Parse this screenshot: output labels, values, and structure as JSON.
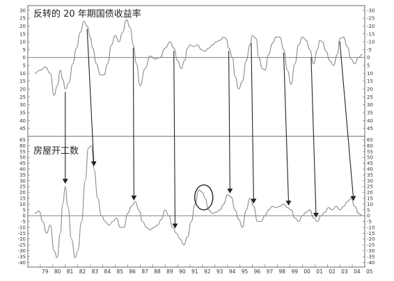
{
  "chart_data": [
    {
      "type": "line",
      "title": "反转的 20 年期国债收益率",
      "y_ticks": [
        -30,
        -25,
        -20,
        -15,
        -10,
        -5,
        0,
        5,
        10,
        15,
        20,
        25,
        30,
        35,
        40,
        45
      ],
      "y_tick_labels": [
        "30",
        "25",
        "20",
        "15",
        "10",
        "5",
        "0",
        "5",
        "10",
        "15",
        "20",
        "25",
        "30",
        "35",
        "40",
        "45"
      ],
      "y_tick_labels_right": [
        "-30",
        "-25",
        "-20",
        "-15",
        "-10",
        "-5",
        "0",
        "5",
        "10",
        "15",
        "20",
        "25",
        "30",
        "35",
        "40",
        "45"
      ],
      "ylim": [
        -33,
        50
      ],
      "inverted_axis": true,
      "reference_line": 0,
      "series": [
        {
          "x": [
            1978.55,
            1979.0,
            1979.4,
            1979.8,
            1980.1,
            1980.35,
            1980.6,
            1980.8,
            1981.0,
            1981.3,
            1981.6,
            1981.9,
            1982.2,
            1982.5,
            1982.75,
            1983.0,
            1983.2,
            1983.5,
            1983.8,
            1984.1,
            1984.4,
            1984.7,
            1985.0,
            1985.3,
            1985.6,
            1985.9,
            1986.2,
            1986.45,
            1986.7,
            1987.0,
            1987.4,
            1987.8,
            1988.2,
            1988.6,
            1989.0,
            1989.4,
            1989.7,
            1990.0,
            1990.3,
            1990.55,
            1990.8,
            1991.0,
            1991.3,
            1991.6,
            1991.9,
            1992.2,
            1992.5,
            1992.8,
            1993.1,
            1993.4,
            1993.7,
            1993.9,
            1994.1,
            1994.4,
            1994.6,
            1994.9,
            1995.2,
            1995.5,
            1995.8,
            1996.0,
            1996.3,
            1996.5,
            1996.8,
            1997.0,
            1997.3,
            1997.6,
            1997.9,
            1998.2,
            1998.5,
            1998.8,
            1999.1,
            1999.4,
            1999.7,
            2000.0,
            2000.3,
            2000.6,
            2000.9,
            2001.2,
            2001.4,
            2001.6,
            2001.9,
            2002.2,
            2002.5,
            2002.8,
            2003.0,
            2003.3,
            2003.6,
            2003.9,
            2004.2,
            2004.5,
            2004.8
          ],
          "values": [
            10,
            8,
            6,
            10,
            24,
            18,
            8,
            14,
            20,
            16,
            4,
            -6,
            -16,
            -23,
            -20,
            -13,
            -6,
            4,
            11,
            11,
            4,
            -8,
            -14,
            -10,
            -16,
            -24,
            -19,
            -8,
            4,
            18,
            7,
            -1,
            1,
            0,
            -6,
            -10,
            -6,
            2,
            7,
            2,
            -6,
            -8,
            -7,
            -8,
            -5,
            -4,
            -6,
            -8,
            -10,
            -11,
            -13,
            -12,
            -6,
            0,
            12,
            20,
            15,
            2,
            -8,
            -14,
            -12,
            0,
            7,
            8,
            -2,
            -9,
            -13,
            -13,
            -5,
            8,
            17,
            4,
            -8,
            -13,
            -11,
            -5,
            4,
            -5,
            -11,
            -10,
            -4,
            2,
            5,
            -2,
            -12,
            -13,
            -7,
            1,
            4,
            0,
            -2
          ]
        }
      ]
    },
    {
      "type": "line",
      "title": "房屋开工数",
      "y_ticks": [
        65,
        60,
        55,
        50,
        45,
        40,
        35,
        30,
        25,
        20,
        15,
        10,
        5,
        0,
        -5,
        -10,
        -15,
        -20,
        -25,
        -30,
        -35,
        -40
      ],
      "y_tick_labels": [
        "65",
        "60",
        "55",
        "50",
        "45",
        "40",
        "35",
        "30",
        "25",
        "20",
        "15",
        "10",
        "5",
        "0",
        "-5",
        "-10",
        "-15",
        "-20",
        "-25",
        "-30",
        "-35",
        "-40"
      ],
      "y_tick_labels_right": [
        "65",
        "60",
        "55",
        "50",
        "45",
        "40",
        "35",
        "30",
        "25",
        "20",
        "15",
        "10",
        "5",
        "0",
        "-5",
        "-10",
        "-15",
        "-20",
        "-25",
        "-30",
        "-35",
        "-40"
      ],
      "ylim": [
        -44,
        68
      ],
      "reference_line": 0,
      "series": [
        {
          "x": [
            1978.55,
            1978.9,
            1979.2,
            1979.5,
            1979.8,
            1980.1,
            1980.35,
            1980.6,
            1980.8,
            1981.0,
            1981.2,
            1981.5,
            1981.8,
            1982.0,
            1982.3,
            1982.6,
            1982.85,
            1983.1,
            1983.3,
            1983.6,
            1983.9,
            1984.2,
            1984.5,
            1984.8,
            1985.1,
            1985.4,
            1985.7,
            1986.0,
            1986.3,
            1986.6,
            1986.9,
            1987.2,
            1987.5,
            1987.8,
            1988.1,
            1988.4,
            1988.7,
            1989.0,
            1989.3,
            1989.6,
            1989.9,
            1990.2,
            1990.5,
            1990.8,
            1991.1,
            1991.4,
            1991.7,
            1992.0,
            1992.2,
            1992.5,
            1992.8,
            1993.1,
            1993.4,
            1993.7,
            1994.0,
            1994.3,
            1994.6,
            1994.9,
            1995.2,
            1995.5,
            1995.8,
            1996.1,
            1996.4,
            1996.7,
            1997.0,
            1997.3,
            1997.6,
            1997.9,
            1998.2,
            1998.5,
            1998.8,
            1999.1,
            1999.4,
            1999.7,
            2000.0,
            2000.3,
            2000.6,
            2000.9,
            2001.2,
            2001.5,
            2001.8,
            2002.1,
            2002.4,
            2002.7,
            2003.0,
            2003.3,
            2003.6,
            2003.9,
            2004.2,
            2004.5,
            2004.8
          ],
          "values": [
            2,
            4,
            -5,
            -15,
            -8,
            -30,
            -36,
            -15,
            10,
            25,
            8,
            -20,
            -36,
            -30,
            -5,
            30,
            58,
            60,
            40,
            15,
            0,
            -5,
            -8,
            -5,
            -2,
            -10,
            -10,
            2,
            8,
            12,
            5,
            -5,
            -10,
            -12,
            -10,
            -8,
            -3,
            5,
            0,
            -10,
            -15,
            -20,
            -25,
            -18,
            -5,
            10,
            22,
            20,
            15,
            5,
            2,
            3,
            5,
            10,
            18,
            16,
            5,
            -3,
            -10,
            5,
            15,
            8,
            -5,
            -5,
            0,
            5,
            8,
            7,
            8,
            10,
            7,
            5,
            -2,
            -5,
            0,
            3,
            5,
            -2,
            -5,
            0,
            3,
            7,
            5,
            8,
            5,
            8,
            12,
            15,
            8,
            2,
            0
          ]
        }
      ]
    }
  ],
  "x_axis": {
    "labels": [
      "79",
      "80",
      "81",
      "82",
      "83",
      "84",
      "85",
      "86",
      "87",
      "88",
      "89",
      "90",
      "91",
      "92",
      "93",
      "94",
      "95",
      "96",
      "97",
      "98",
      "99",
      "00",
      "01",
      "02",
      "03",
      "04",
      "05"
    ],
    "years": [
      1979,
      1980,
      1981,
      1982,
      1983,
      1984,
      1985,
      1986,
      1987,
      1988,
      1989,
      1990,
      1991,
      1992,
      1993,
      1994,
      1995,
      1996,
      1997,
      1998,
      1999,
      2000,
      2001,
      2002,
      2003,
      2004,
      2005
    ],
    "range": [
      1978.0,
      2005.0
    ]
  },
  "annotations": {
    "arrows": [
      {
        "from": 1981.0,
        "to": 1981.0
      },
      {
        "from": 1982.75,
        "to": 1983.3
      },
      {
        "from": 1986.45,
        "to": 1986.5
      },
      {
        "from": 1989.7,
        "to": 1989.8
      },
      {
        "from": 1994.1,
        "to": 1994.2
      },
      {
        "from": 1995.9,
        "to": 1996.1
      },
      {
        "from": 1998.5,
        "to": 1998.9
      },
      {
        "from": 2000.7,
        "to": 2001.1
      },
      {
        "from": 2003.0,
        "to": 2004.1
      }
    ],
    "circle_at": 1992.1
  },
  "colors": {
    "line": "#8a8a8a",
    "arrow": "#222222",
    "axis": "#666666"
  }
}
